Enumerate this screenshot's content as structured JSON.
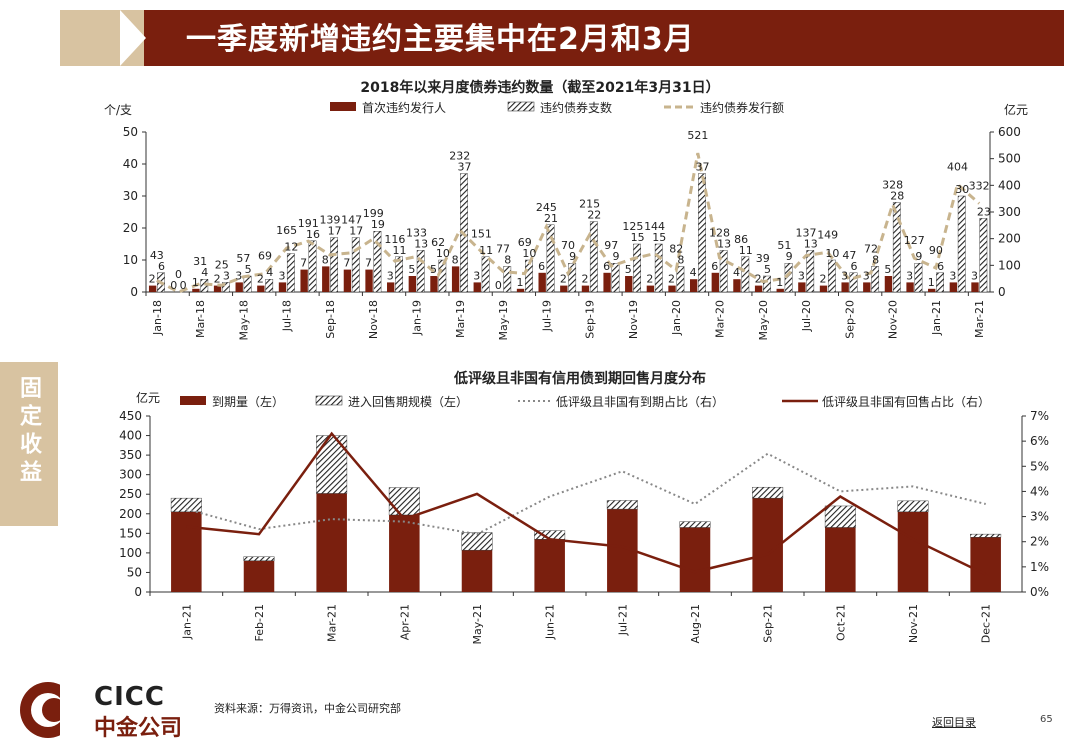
{
  "page": {
    "title": "一季度新增违约主要集中在2月和3月",
    "side_label": "固定收益",
    "logo_en": "CICC",
    "logo_cn": "中金公司",
    "source": "资料来源：万得资讯，中金公司研究部",
    "back_link": "返回目录",
    "page_number": "65",
    "colors": {
      "brand": "#7a1f0e",
      "accent": "#d8c3a1",
      "dash": "#c8b48e"
    }
  },
  "chart_data": [
    {
      "type": "bar",
      "title": "2018年以来月度债券违约数量（截至2021年3月31日）",
      "ylabel_left": "个/支",
      "ylabel_right": "亿元",
      "ylim_left": [
        0,
        50
      ],
      "ylim_right": [
        0,
        600
      ],
      "yticks_left": [
        "0",
        "10",
        "20",
        "30",
        "40",
        "50"
      ],
      "yticks_right": [
        "0",
        "100",
        "200",
        "300",
        "400",
        "500",
        "600"
      ],
      "x_tick_labels": [
        "Jan-18",
        "Mar-18",
        "May-18",
        "Jul-18",
        "Sep-18",
        "Nov-18",
        "Jan-19",
        "Mar-19",
        "May-19",
        "Jul-19",
        "Sep-19",
        "Nov-19",
        "Jan-20",
        "Mar-20",
        "May-20",
        "Jul-20",
        "Sep-20",
        "Nov-20",
        "Jan-21",
        "Mar-21"
      ],
      "categories": [
        "Jan-18",
        "Feb-18",
        "Mar-18",
        "Apr-18",
        "May-18",
        "Jun-18",
        "Jul-18",
        "Aug-18",
        "Sep-18",
        "Oct-18",
        "Nov-18",
        "Dec-18",
        "Jan-19",
        "Feb-19",
        "Mar-19",
        "Apr-19",
        "May-19",
        "Jun-19",
        "Jul-19",
        "Aug-19",
        "Sep-19",
        "Oct-19",
        "Nov-19",
        "Dec-19",
        "Jan-20",
        "Feb-20",
        "Mar-20",
        "Apr-20",
        "May-20",
        "Jun-20",
        "Jul-20",
        "Aug-20",
        "Sep-20",
        "Oct-20",
        "Nov-20",
        "Dec-20",
        "Jan-21",
        "Feb-21",
        "Mar-21"
      ],
      "series": [
        {
          "name": "首次违约发行人",
          "axis": "left",
          "kind": "bar-solid",
          "values": [
            2,
            0,
            1,
            2,
            3,
            2,
            3,
            7,
            8,
            7,
            7,
            3,
            5,
            5,
            8,
            3,
            0,
            1,
            6,
            2,
            2,
            6,
            5,
            2,
            2,
            4,
            6,
            4,
            2,
            1,
            3,
            2,
            3,
            3,
            5,
            3,
            1,
            3,
            3
          ]
        },
        {
          "name": "违约债券支数",
          "axis": "left",
          "kind": "bar-hatch",
          "values": [
            6,
            0,
            4,
            3,
            5,
            4,
            12,
            16,
            17,
            17,
            19,
            11,
            13,
            10,
            37,
            11,
            8,
            10,
            21,
            9,
            22,
            9,
            15,
            15,
            8,
            37,
            13,
            11,
            5,
            9,
            13,
            10,
            6,
            8,
            28,
            9,
            6,
            30,
            23
          ]
        },
        {
          "name": "违约债券发行额",
          "axis": "right",
          "kind": "line-dashed",
          "values": [
            43,
            0,
            31,
            25,
            57,
            69,
            165,
            191,
            139,
            147,
            199,
            116,
            133,
            62,
            232,
            151,
            77,
            69,
            245,
            70,
            215,
            97,
            125,
            144,
            82,
            521,
            128,
            86,
            39,
            51,
            137,
            149,
            47,
            72,
            328,
            127,
            90,
            404,
            332
          ]
        }
      ],
      "labels": {
        "first": [
          "2",
          "0",
          "1",
          "2",
          "3",
          "2",
          "3",
          "7",
          "8",
          "7",
          "7",
          "3",
          "5",
          "5",
          "8",
          "3",
          "0",
          "1",
          "6",
          "2",
          "2",
          "6",
          "5",
          "2",
          "2",
          "4",
          "6",
          "4",
          "2",
          "1",
          "3",
          "2",
          "3",
          "3",
          "5",
          "3",
          "1",
          "3",
          "3"
        ],
        "count": [
          "6",
          "0",
          "4",
          "3",
          "5",
          "4",
          "12",
          "16",
          "17",
          "17",
          "19",
          "11",
          "13",
          "10",
          "37",
          "11",
          "8",
          "10",
          "21",
          "9",
          "22",
          "9",
          "15",
          "15",
          "8",
          "37",
          "13",
          "11",
          "5",
          "9",
          "13",
          "10",
          "6",
          "8",
          "28",
          "9",
          "6",
          "30",
          "23"
        ],
        "amount": [
          "43",
          "0",
          "31",
          "25",
          "57",
          "69",
          "165",
          "191",
          "139",
          "147",
          "199",
          "116",
          "133",
          "62",
          "232",
          "151",
          "77",
          "69",
          "245",
          "70",
          "215",
          "97",
          "125",
          "144",
          "82",
          "521",
          "128",
          "86",
          "39",
          "51",
          "137",
          "149",
          "47",
          "72",
          "328",
          "127",
          "90",
          "404",
          "332"
        ]
      }
    },
    {
      "type": "bar",
      "title": "低评级且非国有信用债到期回售月度分布",
      "ylabel_left": "亿元",
      "ylim_left": [
        0,
        450
      ],
      "ylim_right": [
        0,
        7
      ],
      "yticks_left": [
        "0",
        "50",
        "100",
        "150",
        "200",
        "250",
        "300",
        "350",
        "400",
        "450"
      ],
      "yticks_right": [
        "0%",
        "1%",
        "2%",
        "3%",
        "4%",
        "5%",
        "6%",
        "7%"
      ],
      "categories": [
        "Jan-21",
        "Feb-21",
        "Mar-21",
        "Apr-21",
        "May-21",
        "Jun-21",
        "Jul-21",
        "Aug-21",
        "Sep-21",
        "Oct-21",
        "Nov-21",
        "Dec-21"
      ],
      "series": [
        {
          "name": "到期量（左）",
          "axis": "left",
          "kind": "bar-solid",
          "values": [
            205,
            80,
            252,
            197,
            107,
            135,
            212,
            165,
            240,
            165,
            205,
            140
          ]
        },
        {
          "name": "进入回售期规模（左）",
          "axis": "left",
          "kind": "bar-hatch-stack",
          "values": [
            35,
            10,
            148,
            70,
            45,
            22,
            22,
            15,
            28,
            55,
            28,
            8
          ]
        },
        {
          "name": "低评级且非国有到期占比（右）",
          "axis": "right",
          "kind": "line-dotted",
          "values": [
            3.3,
            2.5,
            2.9,
            2.8,
            2.3,
            3.8,
            4.8,
            3.5,
            5.5,
            4.0,
            4.2,
            3.5
          ]
        },
        {
          "name": "低评级且非国有回售占比（右）",
          "axis": "right",
          "kind": "line-solid",
          "values": [
            2.6,
            2.3,
            6.3,
            2.9,
            3.9,
            2.1,
            1.8,
            0.8,
            1.5,
            3.8,
            2.1,
            0.7
          ]
        }
      ]
    }
  ]
}
